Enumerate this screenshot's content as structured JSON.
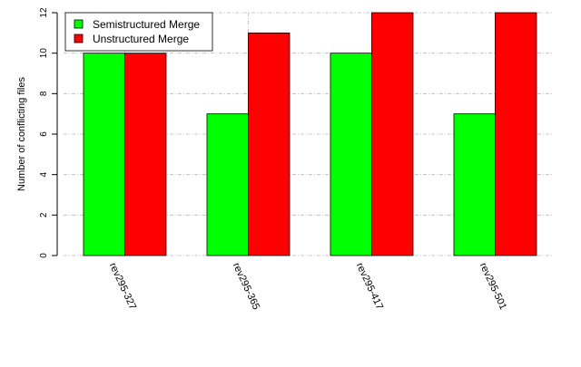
{
  "chart_data": {
    "type": "bar",
    "categories": [
      "rev295-327",
      "rev295-365",
      "rev295-417",
      "rev295-501"
    ],
    "series": [
      {
        "name": "Semistructured Merge",
        "values": [
          10,
          7,
          10,
          7
        ],
        "color": "#00ff00"
      },
      {
        "name": "Unstructured Merge",
        "values": [
          10,
          11,
          12,
          12
        ],
        "color": "#ff0000"
      }
    ],
    "ylabel": "Number of conflicting files",
    "ylim": [
      0,
      12
    ],
    "yticks": [
      0,
      2,
      4,
      6,
      8,
      10,
      12
    ],
    "grid": true,
    "legend_position": "top-left"
  }
}
